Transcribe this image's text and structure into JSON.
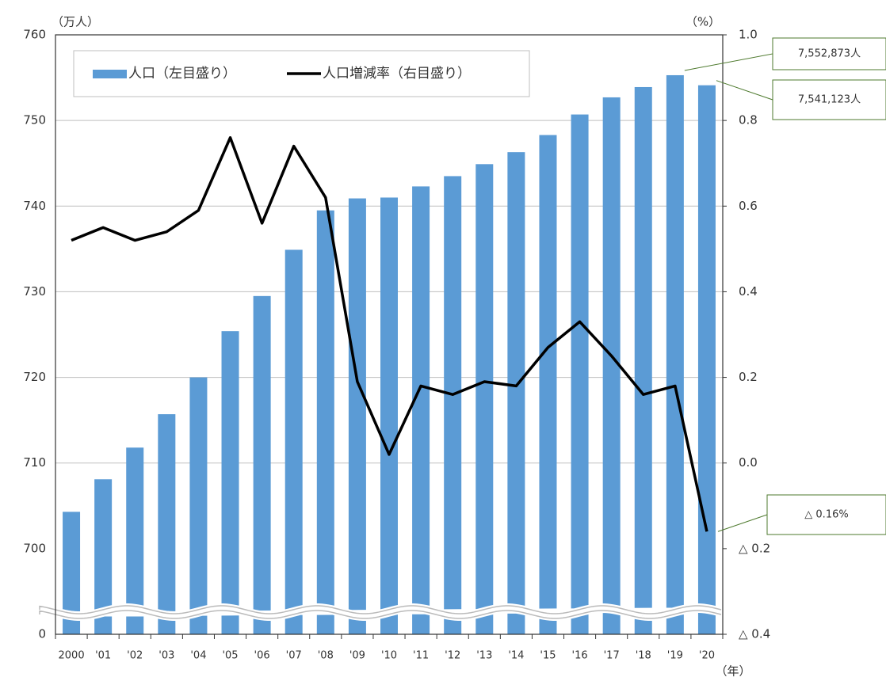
{
  "chart_data": {
    "type": "bar_line",
    "y_label": "（万人）",
    "y2_label": "（%）",
    "x_label": "（年）",
    "categories": [
      "2000",
      "'01",
      "'02",
      "'03",
      "'04",
      "'05",
      "'06",
      "'07",
      "'08",
      "'09",
      "'10",
      "'11",
      "'12",
      "'13",
      "'14",
      "'15",
      "'16",
      "'17",
      "'18",
      "'19",
      "'20"
    ],
    "series": [
      {
        "name": "人口（左目盛り）",
        "type": "bar",
        "color": "#5b9bd5",
        "values": [
          704.3,
          708.1,
          711.8,
          715.7,
          720.0,
          725.4,
          729.5,
          734.9,
          739.5,
          740.9,
          741.0,
          742.3,
          743.5,
          744.9,
          746.3,
          748.3,
          750.7,
          752.7,
          753.9,
          755.2873,
          754.1123
        ],
        "value_labels": [
          null,
          null,
          null,
          null,
          null,
          null,
          null,
          null,
          null,
          null,
          null,
          null,
          null,
          null,
          null,
          null,
          null,
          null,
          null,
          "7,552,873人",
          "7,541,123人"
        ]
      },
      {
        "name": "人口増減率（右目盛り）",
        "type": "line",
        "axis": "y2",
        "color": "#000000",
        "values": [
          0.52,
          0.55,
          0.52,
          0.54,
          0.59,
          0.76,
          0.56,
          0.74,
          0.62,
          0.19,
          0.02,
          0.18,
          0.16,
          0.19,
          0.18,
          0.27,
          0.33,
          0.25,
          0.16,
          0.18,
          -0.16
        ],
        "value_labels": [
          null,
          null,
          null,
          null,
          null,
          null,
          null,
          null,
          null,
          null,
          null,
          null,
          null,
          null,
          null,
          null,
          null,
          null,
          null,
          null,
          "△ 0.16%"
        ]
      }
    ],
    "ylim": [
      0,
      760
    ],
    "ybreak": [
      0,
      700
    ],
    "yticks": [
      0,
      700,
      710,
      720,
      730,
      740,
      750,
      760
    ],
    "y2lim": [
      -0.4,
      1.0
    ],
    "y2ticks": [
      {
        "value": -0.4,
        "label": "△ 0.4"
      },
      {
        "value": -0.2,
        "label": "△ 0.2"
      },
      {
        "value": 0,
        "label": "0.0"
      },
      0.2,
      0.4,
      0.6,
      0.8,
      {
        "value": 1,
        "label": "1.0"
      }
    ],
    "grid": true,
    "legend": "top-left",
    "callout_color": "#4e7a2e"
  }
}
